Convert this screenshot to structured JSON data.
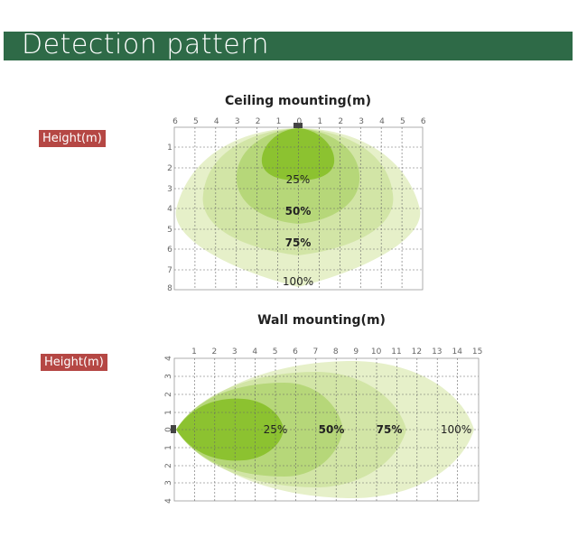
{
  "header": {
    "title": "Detection pattern",
    "bar_color": "#2e6a47"
  },
  "ceiling": {
    "title": "Ceiling mounting(m)",
    "badge": "Height(m)",
    "x_ticks": [
      "6",
      "5",
      "4",
      "3",
      "2",
      "1",
      "0",
      "1",
      "2",
      "3",
      "4",
      "5",
      "6"
    ],
    "y_ticks": [
      "1",
      "2",
      "3",
      "4",
      "5",
      "6",
      "7",
      "8"
    ],
    "labels": [
      "25%",
      "50%",
      "75%",
      "100%"
    ]
  },
  "wall": {
    "title": "Wall mounting(m)",
    "badge": "Height(m)",
    "x_ticks": [
      "1",
      "2",
      "3",
      "4",
      "5",
      "6",
      "7",
      "8",
      "9",
      "10",
      "11",
      "12",
      "13",
      "14",
      "15"
    ],
    "y_ticks": [
      "4",
      "3",
      "2",
      "1",
      "0",
      "1",
      "2",
      "3",
      "4"
    ],
    "labels": [
      "25%",
      "50%",
      "75%",
      "100%"
    ]
  },
  "colors": {
    "zone_100": "#e6f0c9",
    "zone_75": "#d2e5a6",
    "zone_50": "#b6d779",
    "zone_25": "#8cc230",
    "badge": "#b54744"
  }
}
